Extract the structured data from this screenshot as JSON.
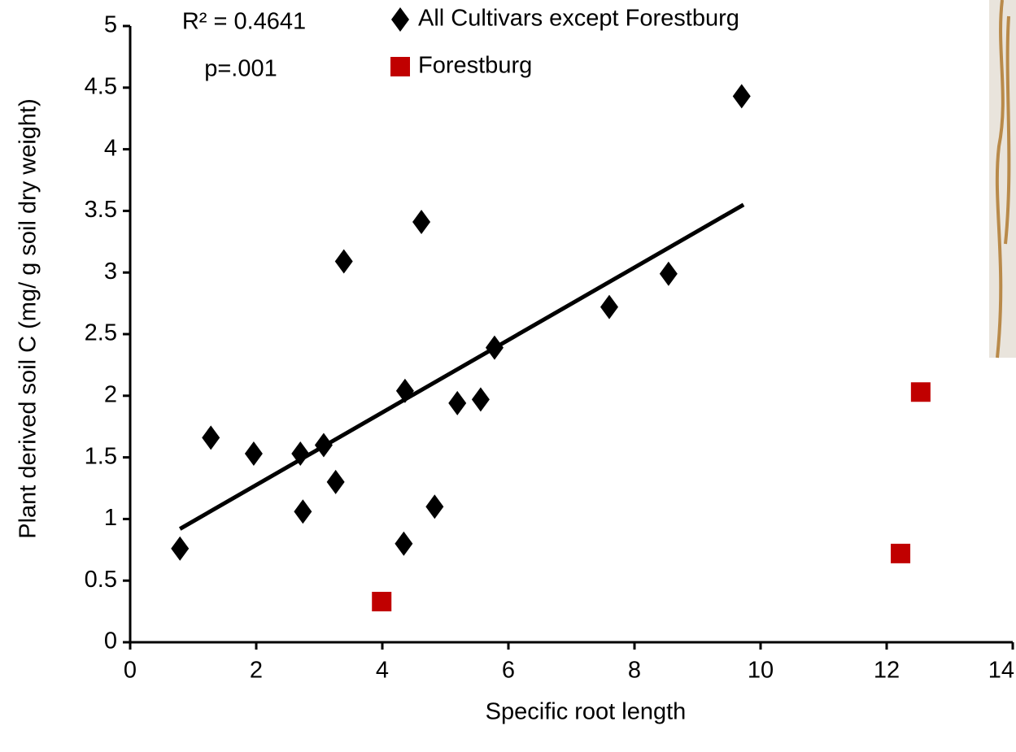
{
  "chart_data": {
    "type": "scatter",
    "x_label": "Specific root length",
    "y_label": "Plant derived  soil C (mg/ g soil dry weight)",
    "annotations": [
      "R² = 0.4641",
      "p=.001"
    ],
    "legend": "top",
    "xlim": [
      0,
      14
    ],
    "xticks": [
      0,
      2,
      4,
      6,
      8,
      10,
      12,
      14
    ],
    "ylim": [
      0,
      5
    ],
    "yticks": [
      0,
      0.5,
      1,
      1.5,
      2,
      2.5,
      3,
      3.5,
      4,
      4.5,
      5
    ],
    "series": [
      {
        "name": "All Cultivars except Forestburg",
        "color": "#000000",
        "marker": "diamond",
        "x": [
          0.79,
          1.28,
          1.96,
          2.7,
          2.74,
          3.07,
          3.26,
          3.39,
          4.34,
          4.36,
          4.62,
          4.83,
          5.19,
          5.56,
          5.78,
          7.6,
          8.54,
          9.7
        ],
        "values": [
          0.76,
          1.66,
          1.53,
          1.53,
          1.06,
          1.6,
          1.3,
          3.09,
          0.8,
          2.04,
          3.41,
          1.1,
          1.94,
          1.97,
          2.39,
          2.72,
          2.99,
          4.43
        ]
      },
      {
        "name": "Forestburg",
        "color": "#c00000",
        "marker": "square",
        "x": [
          3.99,
          12.22,
          12.54
        ],
        "values": [
          0.33,
          0.72,
          2.03
        ]
      }
    ],
    "trendline": {
      "color": "#000000",
      "x": [
        0.79,
        9.73
      ],
      "values": [
        0.92,
        3.55
      ]
    }
  }
}
